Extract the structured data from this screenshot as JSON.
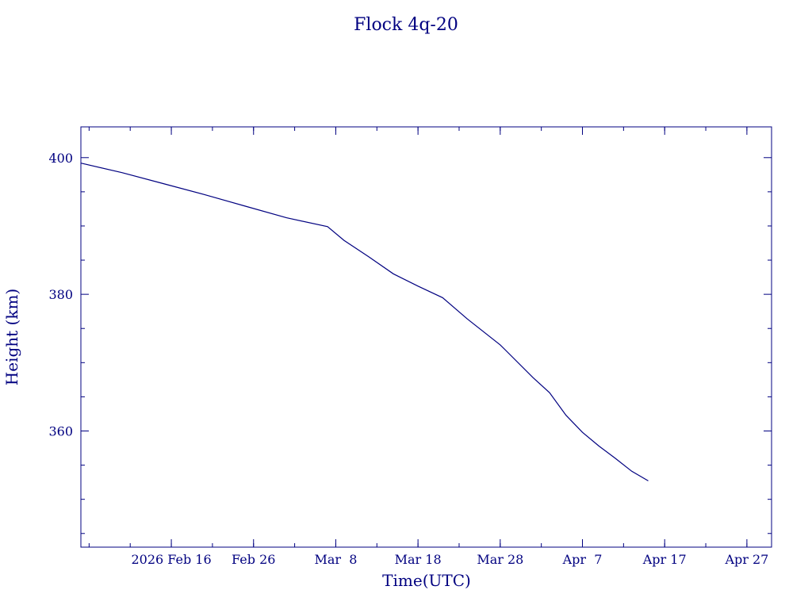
{
  "chart_data": {
    "type": "line",
    "title": "Flock 4q-20",
    "xlabel": "Time(UTC)",
    "ylabel": "Height (km)",
    "color": "#000080",
    "grid": false,
    "xlim": [
      "2026-02-05",
      "2026-04-30"
    ],
    "ylim": [
      343,
      404.5
    ],
    "xticks": [
      {
        "date": "2026-02-16",
        "label": "2026 Feb 16"
      },
      {
        "date": "2026-02-26",
        "label": "Feb 26"
      },
      {
        "date": "2026-03-08",
        "label": "Mar  8"
      },
      {
        "date": "2026-03-18",
        "label": "Mar 18"
      },
      {
        "date": "2026-03-28",
        "label": "Mar 28"
      },
      {
        "date": "2026-04-07",
        "label": "Apr  7"
      },
      {
        "date": "2026-04-17",
        "label": "Apr 17"
      },
      {
        "date": "2026-04-27",
        "label": "Apr 27"
      }
    ],
    "yticks": [
      360,
      380,
      400
    ],
    "series": [
      {
        "points": [
          [
            "2026-02-05",
            399.2
          ],
          [
            "2026-02-10",
            397.8
          ],
          [
            "2026-02-15",
            396.2
          ],
          [
            "2026-02-20",
            394.6
          ],
          [
            "2026-02-25",
            392.9
          ],
          [
            "2026-03-02",
            391.2
          ],
          [
            "2026-03-07",
            389.9
          ],
          [
            "2026-03-09",
            387.9
          ],
          [
            "2026-03-12",
            385.5
          ],
          [
            "2026-03-15",
            383.0
          ],
          [
            "2026-03-18",
            381.2
          ],
          [
            "2026-03-21",
            379.5
          ],
          [
            "2026-03-24",
            376.4
          ],
          [
            "2026-03-28",
            372.6
          ],
          [
            "2026-04-01",
            367.8
          ],
          [
            "2026-04-03",
            365.6
          ],
          [
            "2026-04-05",
            362.3
          ],
          [
            "2026-04-07",
            359.8
          ],
          [
            "2026-04-09",
            357.8
          ],
          [
            "2026-04-11",
            356.0
          ],
          [
            "2026-04-13",
            354.1
          ],
          [
            "2026-04-15",
            352.7
          ]
        ]
      }
    ]
  }
}
